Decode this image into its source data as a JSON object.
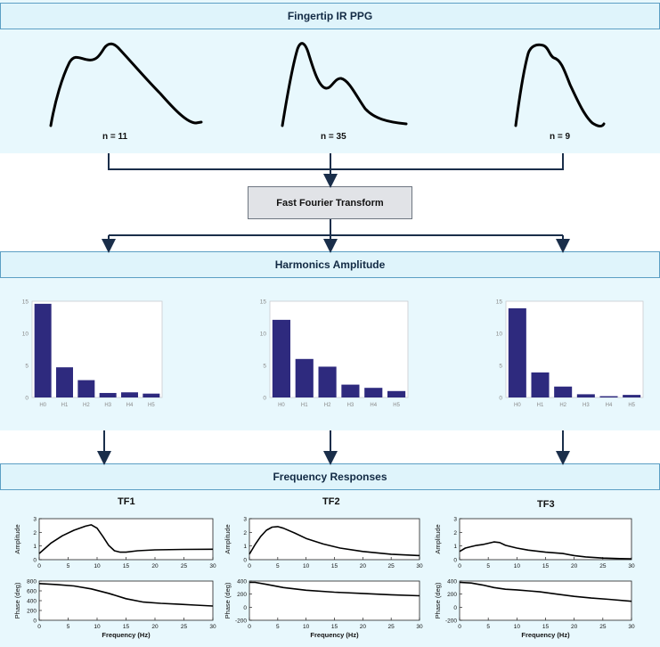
{
  "titles": {
    "ppg": "Fingertip IR PPG",
    "fft": "Fast Fourier Transform",
    "harmonics": "Harmonics Amplitude",
    "freq": "Frequency Responses"
  },
  "waveforms": [
    {
      "n_label": "n = 11"
    },
    {
      "n_label": "n = 35"
    },
    {
      "n_label": "n = 9"
    }
  ],
  "harmonic_axis": {
    "ylim": [
      0,
      15
    ],
    "yticks": [
      "0",
      "5",
      "10",
      "15"
    ]
  },
  "tf_axis": {
    "xlabel": "Frequency (Hz)",
    "xlim": [
      0,
      30
    ],
    "xticks": [
      "0",
      "5",
      "10",
      "15",
      "20",
      "25",
      "30"
    ],
    "amp_ylabel": "Amplitude",
    "phase_ylabel": "Phase (deg)"
  },
  "tf_titles": [
    "TF1",
    "TF2",
    "TF3"
  ],
  "colors": {
    "bar": "#2e2a7e",
    "arrow": "#1a2e4a",
    "band": "#e8f8fd",
    "header": "#dff4fb"
  },
  "chart_data": [
    {
      "type": "bar",
      "categories": [
        "H0",
        "H1",
        "H2",
        "H3",
        "H4",
        "H5"
      ],
      "values": [
        14.6,
        4.7,
        2.7,
        0.7,
        0.8,
        0.6
      ],
      "ylim": [
        0,
        15
      ]
    },
    {
      "type": "bar",
      "categories": [
        "H0",
        "H1",
        "H2",
        "H3",
        "H4",
        "H5"
      ],
      "values": [
        12.1,
        6.0,
        4.8,
        2.0,
        1.5,
        1.0
      ],
      "ylim": [
        0,
        15
      ]
    },
    {
      "type": "bar",
      "categories": [
        "H0",
        "H1",
        "H2",
        "H3",
        "H4",
        "H5"
      ],
      "values": [
        13.9,
        3.9,
        1.7,
        0.5,
        0.2,
        0.4
      ],
      "ylim": [
        0,
        15
      ]
    },
    {
      "type": "line",
      "title": "TF1",
      "ylabel": "Amplitude",
      "ylim": [
        0,
        3
      ],
      "yticks": [
        "0",
        "1",
        "2",
        "3"
      ],
      "x": [
        0,
        2,
        4,
        6,
        8,
        9,
        10,
        11,
        12,
        13,
        14,
        15,
        17,
        20,
        25,
        30
      ],
      "y": [
        0.45,
        1.2,
        1.75,
        2.15,
        2.45,
        2.55,
        2.3,
        1.7,
        1.05,
        0.65,
        0.55,
        0.55,
        0.65,
        0.72,
        0.75,
        0.76
      ]
    },
    {
      "type": "line",
      "title": "TF1",
      "ylabel": "Phase (deg)",
      "ylim": [
        0,
        800
      ],
      "yticks": [
        "0",
        "200",
        "400",
        "600",
        "800"
      ],
      "x": [
        0,
        3,
        6,
        9,
        12,
        15,
        18,
        21,
        24,
        27,
        30
      ],
      "y": [
        750,
        730,
        700,
        640,
        550,
        440,
        370,
        345,
        330,
        310,
        290
      ]
    },
    {
      "type": "line",
      "title": "TF2",
      "ylabel": "Amplitude",
      "ylim": [
        0,
        3
      ],
      "yticks": [
        "0",
        "1",
        "2",
        "3"
      ],
      "x": [
        0,
        1,
        2,
        3,
        4,
        5,
        6,
        8,
        10,
        13,
        16,
        20,
        25,
        30
      ],
      "y": [
        0.4,
        1.1,
        1.7,
        2.15,
        2.38,
        2.42,
        2.3,
        1.95,
        1.55,
        1.15,
        0.85,
        0.6,
        0.4,
        0.3
      ]
    },
    {
      "type": "line",
      "title": "TF2",
      "ylabel": "Phase (deg)",
      "ylim": [
        -200,
        400
      ],
      "yticks": [
        "-200",
        "0",
        "200",
        "400"
      ],
      "x": [
        0,
        1,
        3,
        6,
        10,
        15,
        20,
        25,
        30
      ],
      "y": [
        380,
        380,
        350,
        300,
        260,
        230,
        210,
        190,
        175
      ]
    },
    {
      "type": "line",
      "title": "TF3",
      "ylabel": "Amplitude",
      "ylim": [
        0,
        3
      ],
      "yticks": [
        "0",
        "1",
        "2",
        "3"
      ],
      "x": [
        0,
        1,
        2,
        3,
        4,
        5,
        6,
        7,
        8,
        10,
        12,
        15,
        18,
        20,
        22,
        25,
        28,
        30
      ],
      "y": [
        0.6,
        0.85,
        0.95,
        1.05,
        1.1,
        1.2,
        1.3,
        1.25,
        1.05,
        0.85,
        0.7,
        0.55,
        0.45,
        0.3,
        0.2,
        0.12,
        0.08,
        0.06
      ]
    },
    {
      "type": "line",
      "title": "TF3",
      "ylabel": "Phase (deg)",
      "ylim": [
        -200,
        400
      ],
      "yticks": [
        "-200",
        "0",
        "200",
        "400"
      ],
      "x": [
        0,
        2,
        4,
        6,
        8,
        10,
        12,
        14,
        17,
        20,
        23,
        26,
        30
      ],
      "y": [
        380,
        370,
        340,
        300,
        275,
        265,
        250,
        235,
        200,
        165,
        140,
        120,
        90
      ]
    }
  ]
}
